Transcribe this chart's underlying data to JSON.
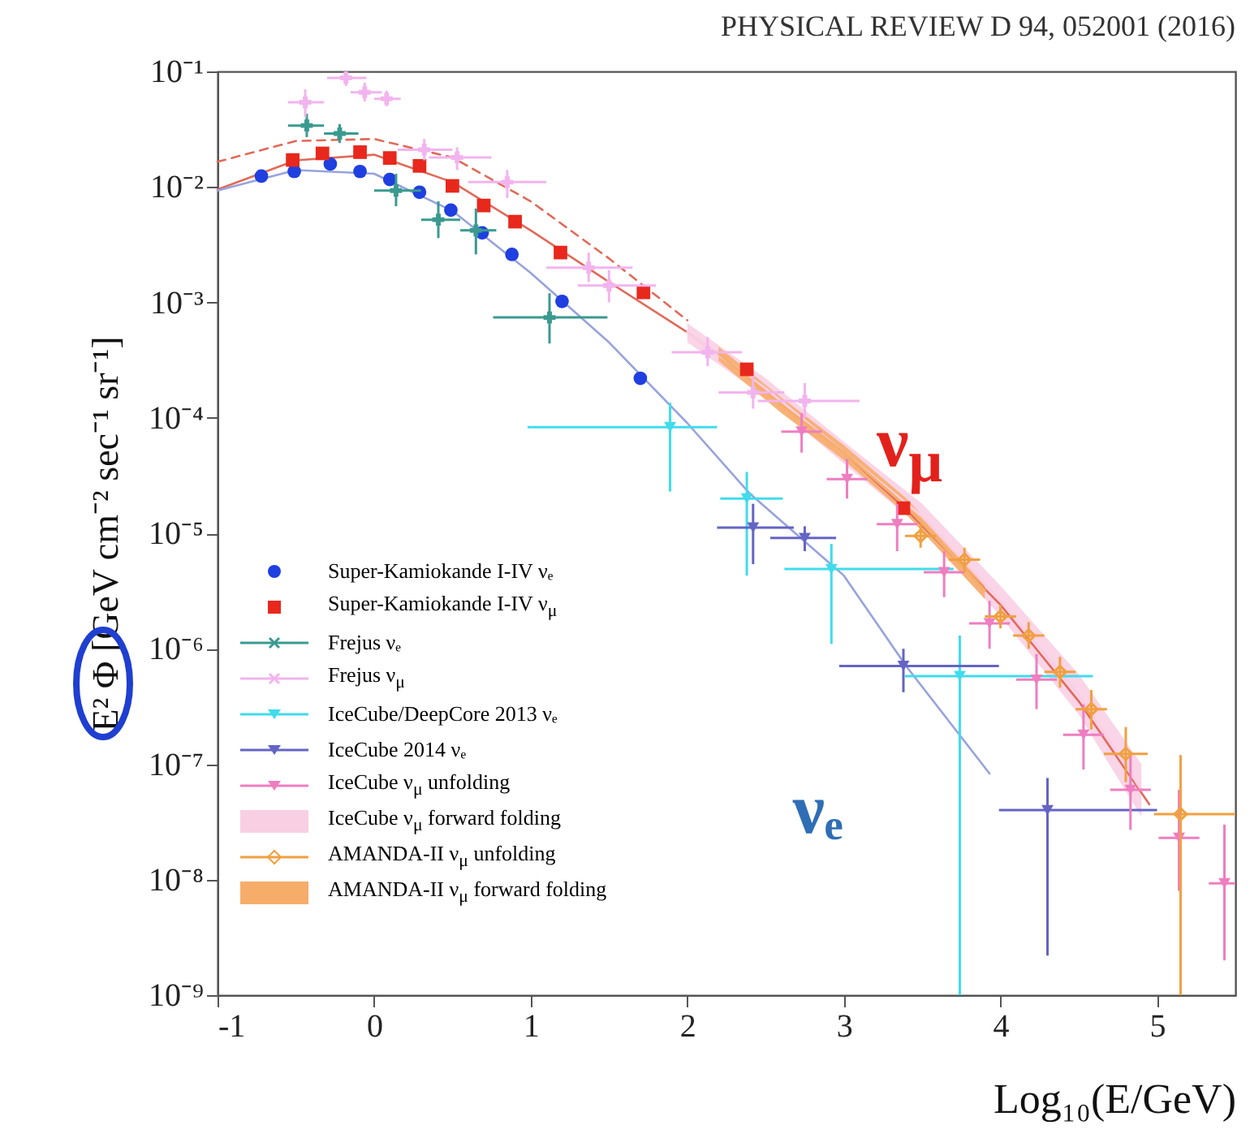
{
  "chart_data": {
    "type": "scatter",
    "xlabel": "Log₁₀(E/GeV)",
    "ylabel": "E² Φ [GeV cm⁻² sec⁻¹ sr⁻¹]",
    "annotations": [
      "PHYSICAL REVIEW D 94, 052001 (2016)",
      "ν$_{μ}$",
      "νₑ"
    ],
    "xlim": [
      -1,
      5.5
    ],
    "xticks": [
      -1,
      0,
      1,
      2,
      3,
      4,
      5
    ],
    "ylim": [
      1e-09,
      0.1
    ],
    "log": "y",
    "yticks": [
      {
        "value": 1e-09,
        "label": "10⁻⁹"
      },
      {
        "value": 1e-08,
        "label": "10⁻⁸"
      },
      {
        "value": 1e-07,
        "label": "10⁻⁷"
      },
      {
        "value": 1e-06,
        "label": "10⁻⁶"
      },
      {
        "value": 1e-05,
        "label": "10⁻⁵"
      },
      {
        "value": 0.0001,
        "label": "10⁻⁴"
      },
      {
        "value": 0.001,
        "label": "10⁻³"
      },
      {
        "value": 0.01,
        "label": "10⁻²"
      },
      {
        "value": 0.1,
        "label": "10⁻¹"
      }
    ],
    "legend": "bottom left",
    "series": [
      {
        "name": "Super-Kamiokande I-IV νₑ",
        "marker": "circle",
        "color": "#1f3fe0",
        "x": [
          -0.72,
          -0.51,
          -0.28,
          -0.09,
          0.1,
          0.29,
          0.49,
          0.69,
          0.88,
          1.2,
          1.7
        ],
        "values": [
          0.0124,
          0.0136,
          0.0158,
          0.0136,
          0.0116,
          0.009,
          0.0063,
          0.004,
          0.0026,
          0.00102,
          0.00022
        ]
      },
      {
        "name": "Super-Kamiokande I-IV ν$_{μ}$",
        "marker": "square",
        "color": "#e8281c",
        "x": [
          -0.52,
          -0.33,
          -0.09,
          0.1,
          0.29,
          0.5,
          0.7,
          0.9,
          1.19,
          1.72,
          2.38,
          3.38
        ],
        "values": [
          0.0171,
          0.0195,
          0.02,
          0.0178,
          0.0152,
          0.0102,
          0.0069,
          0.005,
          0.0027,
          0.00122,
          0.000263,
          1.65e-05
        ]
      },
      {
        "name": "Frejus νₑ",
        "marker": "cross",
        "color": "#3a9a90",
        "x": [
          -0.43,
          -0.22,
          0.14,
          0.41,
          0.65,
          1.12
        ],
        "values": [
          0.034,
          0.029,
          0.0093,
          0.0052,
          0.0042,
          0.00074
        ],
        "errors": [
          [
            0.027,
            0.043
          ],
          [
            0.024,
            0.035
          ],
          [
            0.0068,
            0.013
          ],
          [
            0.0036,
            0.0075
          ],
          [
            0.0026,
            0.0065
          ],
          [
            0.00044,
            0.0012
          ]
        ],
        "xerrors": [
          [
            -0.55,
            -0.32
          ],
          [
            -0.32,
            -0.1
          ],
          [
            0.0,
            0.3
          ],
          [
            0.3,
            0.55
          ],
          [
            0.55,
            0.78
          ],
          [
            0.76,
            1.49
          ]
        ]
      },
      {
        "name": "Frejus ν$_{μ}$",
        "marker": "cross",
        "color": "#f2b4ee",
        "x": [
          -0.44,
          -0.18,
          -0.06,
          0.08,
          0.32,
          0.53,
          0.85,
          1.37,
          1.5,
          2.13,
          2.42,
          2.75
        ],
        "values": [
          0.054,
          0.088,
          0.066,
          0.058,
          0.021,
          0.018,
          0.011,
          0.002,
          0.0014,
          0.00037,
          0.000166,
          0.00014
        ],
        "errors": [
          [
            0.04,
            0.07
          ],
          [
            0.075,
            0.1
          ],
          [
            0.055,
            0.08
          ],
          [
            0.05,
            0.068
          ],
          [
            0.017,
            0.026
          ],
          [
            0.014,
            0.022
          ],
          [
            0.008,
            0.014
          ],
          [
            0.0015,
            0.0027
          ],
          [
            0.001,
            0.0019
          ],
          [
            0.00028,
            0.0005
          ],
          [
            0.00012,
            0.00023
          ],
          [
            0.0001,
            0.0002
          ]
        ],
        "xerrors": [
          [
            -0.55,
            -0.32
          ],
          [
            -0.3,
            -0.05
          ],
          [
            -0.15,
            0.05
          ],
          [
            0,
            0.17
          ],
          [
            0.15,
            0.5
          ],
          [
            0.35,
            0.75
          ],
          [
            0.6,
            1.1
          ],
          [
            1.1,
            1.65
          ],
          [
            1.3,
            1.8
          ],
          [
            1.9,
            2.35
          ],
          [
            2.2,
            2.62
          ],
          [
            2.45,
            3.1
          ]
        ]
      },
      {
        "name": "IceCube/DeepCore 2013 νₑ",
        "marker": "triangle",
        "color": "#40dcec",
        "x": [
          1.89,
          2.38,
          2.92,
          3.74
        ],
        "values": [
          8.3e-05,
          2e-05,
          4.9e-06,
          5.8e-07
        ],
        "errors": [
          [
            2.3e-05,
            0.000135
          ],
          [
            4.3e-06,
            3.4e-05
          ],
          [
            1.1e-06,
            8.1e-06
          ],
          [
            1e-09,
            1.3e-06
          ]
        ],
        "xerrors": [
          [
            0.98,
            2.19
          ],
          [
            2.21,
            2.61
          ],
          [
            2.62,
            3.7
          ],
          [
            3.39,
            4.59
          ]
        ]
      },
      {
        "name": "IceCube 2014 νₑ",
        "marker": "triangle",
        "color": "#6464c4",
        "x": [
          2.42,
          2.75,
          3.38,
          4.3
        ],
        "values": [
          1.12e-05,
          9.1e-06,
          7.1e-07,
          4e-08
        ],
        "errors": [
          [
            5.4e-06,
            1.8e-05
          ],
          [
            7e-06,
            1.15e-05
          ],
          [
            4.2e-07,
            1e-06
          ],
          [
            2.2e-09,
            7.6e-08
          ]
        ],
        "xerrors": [
          [
            2.19,
            2.68
          ],
          [
            2.53,
            2.95
          ],
          [
            2.97,
            3.99
          ],
          [
            3.99,
            5.0
          ]
        ]
      },
      {
        "name": "IceCube ν$_{μ}$ unfolding",
        "marker": "triangle",
        "color": "#ee7ec0",
        "x": [
          2.73,
          3.02,
          3.34,
          3.64,
          3.93,
          4.23,
          4.53,
          4.83,
          5.14,
          5.43
        ],
        "values": [
          7.6e-05,
          2.95e-05,
          1.2e-05,
          4.6e-06,
          1.66e-06,
          5.4e-07,
          1.8e-07,
          6e-08,
          2.3e-08,
          9.3e-09
        ],
        "errors": [
          [
            5e-05,
            0.00011
          ],
          [
            2e-05,
            4.4e-05
          ],
          [
            7e-06,
            1.8e-05
          ],
          [
            2.8e-06,
            7e-06
          ],
          [
            1e-06,
            2.6e-06
          ],
          [
            3e-07,
            9e-07
          ],
          [
            9e-08,
            3.3e-07
          ],
          [
            2.7e-08,
            1.2e-07
          ],
          [
            8e-09,
            6e-08
          ],
          [
            2e-09,
            3e-08
          ]
        ],
        "xerrors": [
          [
            2.6,
            2.86
          ],
          [
            2.89,
            3.15
          ],
          [
            3.21,
            3.47
          ],
          [
            3.51,
            3.77
          ],
          [
            3.8,
            4.06
          ],
          [
            4.1,
            4.36
          ],
          [
            4.4,
            4.66
          ],
          [
            4.7,
            4.96
          ],
          [
            5.01,
            5.27
          ],
          [
            5.33,
            5.5
          ]
        ]
      },
      {
        "name": "IceCube ν$_{μ}$ forward folding",
        "type": "line",
        "color": "#f9cfe4",
        "x": [
          2,
          2.5,
          3,
          3.5,
          4,
          4.5,
          4.9
        ],
        "values": [
          0.00055,
          0.00018,
          5e-05,
          1.4e-05,
          2.6e-06,
          4e-07,
          6e-08
        ],
        "lower": [
          0.00045,
          0.00015,
          4e-05,
          1.1e-05,
          1.9e-06,
          2.7e-07,
          3.5e-08
        ],
        "upper": [
          0.00066,
          0.00022,
          6.2e-05,
          1.8e-05,
          3.5e-06,
          6e-07,
          1e-07
        ]
      },
      {
        "name": "AMANDA-II ν$_{μ}$ unfolding",
        "marker": "diamond",
        "color": "#f0a040",
        "x": [
          3.49,
          3.77,
          4.0,
          4.18,
          4.38,
          4.58,
          4.8,
          5.15
        ],
        "values": [
          9.5e-06,
          5.9e-06,
          1.9e-06,
          1.3e-06,
          6.3e-07,
          3e-07,
          1.23e-07,
          3.7e-08
        ],
        "errors": [
          [
            7.5e-06,
            1.2e-05
          ],
          [
            4.6e-06,
            7.5e-06
          ],
          [
            1.5e-06,
            2.4e-06
          ],
          [
            1e-06,
            1.7e-06
          ],
          [
            4.6e-07,
            8.5e-07
          ],
          [
            2e-07,
            4.4e-07
          ],
          [
            7e-08,
            2.1e-07
          ],
          [
            1e-09,
            1.2e-07
          ]
        ],
        "xerrors": [
          [
            3.39,
            3.59
          ],
          [
            3.67,
            3.87
          ],
          [
            3.9,
            4.1
          ],
          [
            4.08,
            4.28
          ],
          [
            4.28,
            4.48
          ],
          [
            4.48,
            4.68
          ],
          [
            4.66,
            4.94
          ],
          [
            4.98,
            5.5
          ]
        ]
      },
      {
        "name": "AMANDA-II ν$_{μ}$ forward folding",
        "type": "line",
        "color": "#f6ad6a",
        "x": [
          2.2,
          2.6,
          3,
          3.4,
          3.9
        ],
        "values": [
          0.00036,
          0.00013,
          5e-05,
          1.7e-05,
          3.2e-06
        ],
        "lower": [
          0.00031,
          0.00011,
          4.3e-05,
          1.45e-05,
          2.7e-06
        ],
        "upper": [
          0.00041,
          0.00015,
          5.8e-05,
          2e-05,
          3.7e-06
        ]
      },
      {
        "type": "line",
        "line_style": "solid",
        "color": "#e06a5a",
        "x": [
          -1,
          -0.5,
          0,
          0.5,
          1,
          1.5,
          2,
          2.5,
          3,
          3.4,
          4,
          4.5,
          4.95
        ],
        "values": [
          0.0095,
          0.017,
          0.019,
          0.011,
          0.0042,
          0.0015,
          0.00055,
          0.00018,
          5e-05,
          1.6e-05,
          2.4e-06,
          3.5e-07,
          4.5e-08
        ]
      },
      {
        "type": "line",
        "line_style": "dashed",
        "color": "#e06a5a",
        "x": [
          -1,
          -0.5,
          0,
          0.5,
          1,
          1.5,
          2
        ],
        "values": [
          0.0165,
          0.025,
          0.026,
          0.018,
          0.0075,
          0.0024,
          0.0007
        ]
      },
      {
        "type": "line",
        "line_style": "solid",
        "color": "#97a3dc",
        "x": [
          -1,
          -0.5,
          0,
          0.5,
          1,
          1.5,
          2,
          2.4,
          3,
          3.4,
          3.93
        ],
        "values": [
          0.0093,
          0.014,
          0.013,
          0.0062,
          0.0018,
          0.00045,
          9e-05,
          2.2e-05,
          4.3e-06,
          7e-07,
          8.3e-08
        ]
      }
    ]
  }
}
